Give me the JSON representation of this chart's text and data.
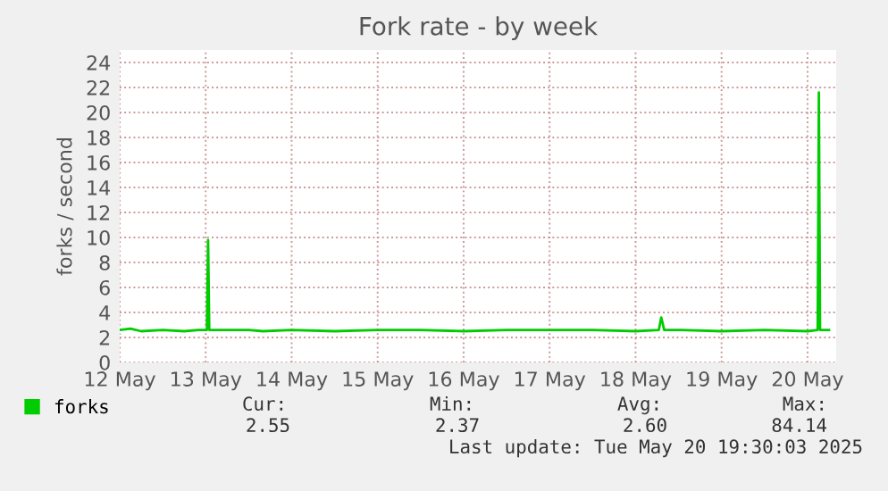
{
  "chart_data": {
    "type": "line",
    "title": "Fork rate - by week",
    "ylabel": "forks / second",
    "x": [
      "2025-05-12T00:00",
      "2025-05-12T03:00",
      "2025-05-12T06:00",
      "2025-05-12T12:00",
      "2025-05-12T18:00",
      "2025-05-12T22:00",
      "2025-05-13T00:20",
      "2025-05-13T00:40",
      "2025-05-13T01:00",
      "2025-05-13T03:00",
      "2025-05-13T12:00",
      "2025-05-13T16:00",
      "2025-05-14T00:00",
      "2025-05-14T12:00",
      "2025-05-15T00:00",
      "2025-05-15T12:00",
      "2025-05-16T00:00",
      "2025-05-16T12:00",
      "2025-05-17T00:00",
      "2025-05-17T12:00",
      "2025-05-18T00:00",
      "2025-05-18T06:30",
      "2025-05-18T07:10",
      "2025-05-18T08:00",
      "2025-05-18T12:00",
      "2025-05-19T00:00",
      "2025-05-19T12:00",
      "2025-05-20T00:00",
      "2025-05-20T02:50",
      "2025-05-20T03:10",
      "2025-05-20T03:30",
      "2025-05-20T06:00"
    ],
    "series": [
      {
        "name": "forks",
        "color": "#00cc00",
        "values": [
          2.6,
          2.7,
          2.5,
          2.6,
          2.5,
          2.6,
          2.6,
          9.8,
          2.6,
          2.6,
          2.6,
          2.5,
          2.6,
          2.5,
          2.6,
          2.6,
          2.5,
          2.6,
          2.6,
          2.6,
          2.5,
          2.6,
          3.6,
          2.6,
          2.6,
          2.5,
          2.6,
          2.5,
          2.6,
          21.6,
          2.6,
          2.6
        ]
      }
    ],
    "xlim": [
      "2025-05-12T00:00",
      "2025-05-20T08:00"
    ],
    "xticks": [
      {
        "value": "2025-05-12",
        "label": "12 May"
      },
      {
        "value": "2025-05-13",
        "label": "13 May"
      },
      {
        "value": "2025-05-14",
        "label": "14 May"
      },
      {
        "value": "2025-05-15",
        "label": "15 May"
      },
      {
        "value": "2025-05-16",
        "label": "16 May"
      },
      {
        "value": "2025-05-17",
        "label": "17 May"
      },
      {
        "value": "2025-05-18",
        "label": "18 May"
      },
      {
        "value": "2025-05-19",
        "label": "19 May"
      },
      {
        "value": "2025-05-20",
        "label": "20 May"
      }
    ],
    "ylim": [
      0,
      25
    ],
    "yticks": [
      0,
      2,
      4,
      6,
      8,
      10,
      12,
      14,
      16,
      18,
      20,
      22,
      24
    ],
    "grid": true,
    "legend": "bottom left",
    "annotations": [
      "Cur:",
      "Min:",
      "Avg:",
      "Max:",
      "2.55",
      "2.37",
      "2.60",
      "84.14",
      "Last update: Tue May 20 19:30:03 2025"
    ]
  }
}
